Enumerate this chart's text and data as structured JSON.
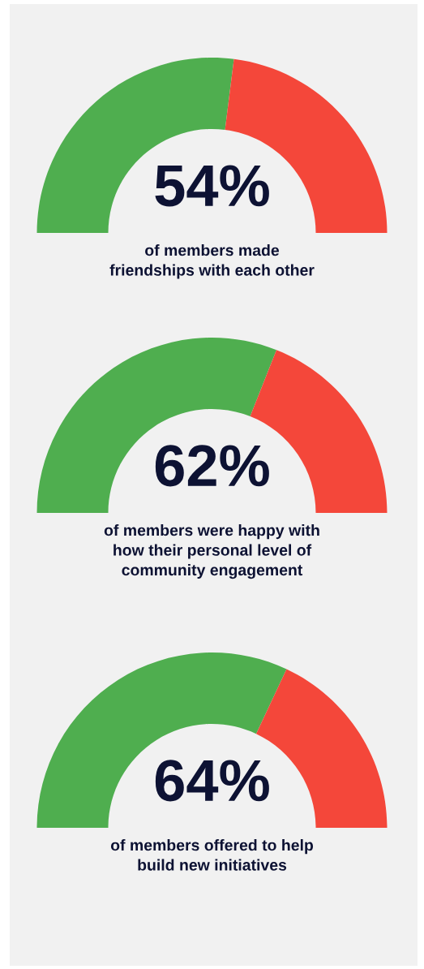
{
  "chart_data": [
    {
      "type": "donut",
      "categories": [
        null,
        null
      ],
      "values": [
        54,
        46
      ],
      "colors": [
        "#4fae4f",
        "#f4473a"
      ],
      "value_labels": [
        "54%",
        null
      ],
      "annotations": [
        "of members made\nfriendships with each other"
      ]
    },
    {
      "type": "donut",
      "categories": [
        null,
        null
      ],
      "values": [
        62,
        38
      ],
      "colors": [
        "#4fae4f",
        "#f4473a"
      ],
      "value_labels": [
        "62%",
        null
      ],
      "annotations": [
        "of members were happy with\nhow their personal level of\ncommunity engagement"
      ]
    },
    {
      "type": "donut",
      "categories": [
        null,
        null
      ],
      "values": [
        64,
        36
      ],
      "colors": [
        "#4fae4f",
        "#f4473a"
      ],
      "value_labels": [
        "64%",
        null
      ],
      "annotations": [
        "of members offered to help\nbuild new initiatives"
      ]
    }
  ]
}
